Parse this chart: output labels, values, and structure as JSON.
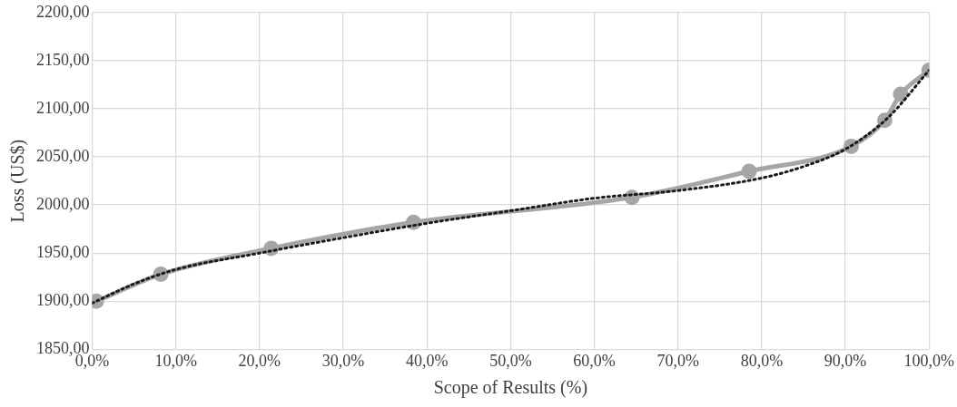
{
  "chart_data": {
    "type": "line",
    "xlabel": "Scope of Results (%)",
    "ylabel": "Loss (US$)",
    "xlim": [
      0,
      100
    ],
    "ylim": [
      1850,
      2200
    ],
    "xticks": [
      {
        "value": 0,
        "label": "0,0%"
      },
      {
        "value": 10,
        "label": "10,0%"
      },
      {
        "value": 20,
        "label": "20,0%"
      },
      {
        "value": 30,
        "label": "30,0%"
      },
      {
        "value": 40,
        "label": "40,0%"
      },
      {
        "value": 50,
        "label": "50,0%"
      },
      {
        "value": 60,
        "label": "60,0%"
      },
      {
        "value": 70,
        "label": "70,0%"
      },
      {
        "value": 80,
        "label": "80,0%"
      },
      {
        "value": 90,
        "label": "90,0%"
      },
      {
        "value": 100,
        "label": "100,0%"
      }
    ],
    "yticks": [
      {
        "value": 1850,
        "label": "1850,00"
      },
      {
        "value": 1900,
        "label": "1900,00"
      },
      {
        "value": 1950,
        "label": "1950,00"
      },
      {
        "value": 2000,
        "label": "2000,00"
      },
      {
        "value": 2050,
        "label": "2050,00"
      },
      {
        "value": 2100,
        "label": "2100,00"
      },
      {
        "value": 2150,
        "label": "2150,00"
      },
      {
        "value": 2200,
        "label": "2200,00"
      }
    ],
    "grid": true,
    "legend": false,
    "series": [
      {
        "type": "line",
        "color": "#a6a6a6",
        "marker": "circle",
        "line_style": "solid",
        "x": [
          0.5,
          8.2,
          21.4,
          38.4,
          64.5,
          78.5,
          90.7,
          94.7,
          96.6,
          100
        ],
        "values": [
          1900,
          1928,
          1955,
          1982,
          2008,
          2035,
          2061,
          2088,
          2115,
          2140
        ]
      },
      {
        "type": "line",
        "color": "#1a1a1a",
        "marker": "none",
        "line_style": "dotted",
        "x": [
          0,
          5,
          10,
          20,
          30,
          40,
          50,
          60,
          70,
          80,
          85,
          90,
          95,
          100
        ],
        "values": [
          1898,
          1918,
          1933,
          1950,
          1966,
          1981,
          1994,
          2007,
          2015,
          2028,
          2040,
          2058,
          2090,
          2140
        ]
      }
    ]
  }
}
